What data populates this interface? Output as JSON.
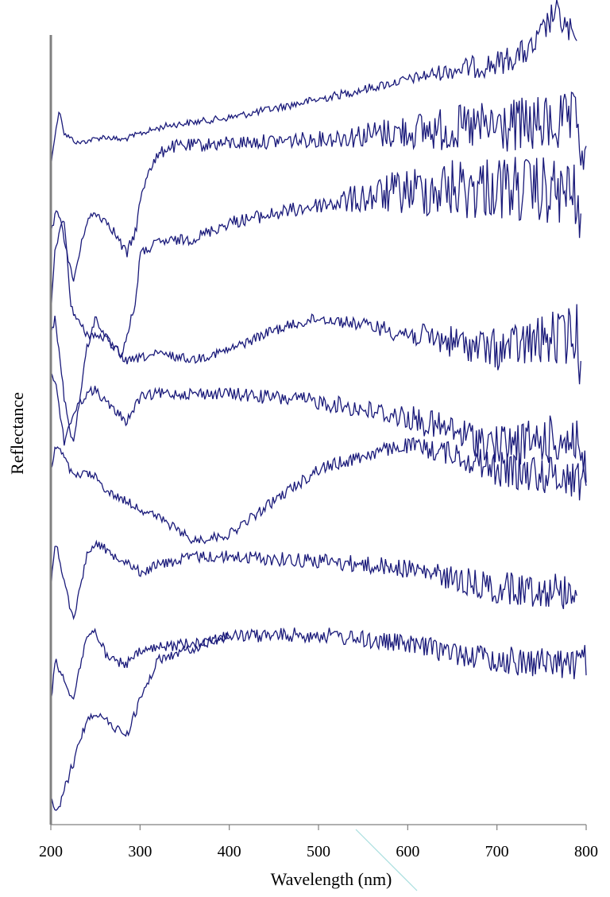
{
  "chart_data": {
    "type": "line",
    "xlabel": "Wavelength (nm)",
    "ylabel": "Reflectance",
    "xlim": [
      200,
      800
    ],
    "x_ticks": [
      "200",
      "300",
      "400",
      "500",
      "600",
      "700",
      "800"
    ],
    "y_ticks": [],
    "grid": false,
    "legend": "none",
    "line_color": "#1a1a7a",
    "axis_color": "#808080",
    "note": "Stacked reflectance spectra (vertically offset, y axis unlabeled)."
  }
}
